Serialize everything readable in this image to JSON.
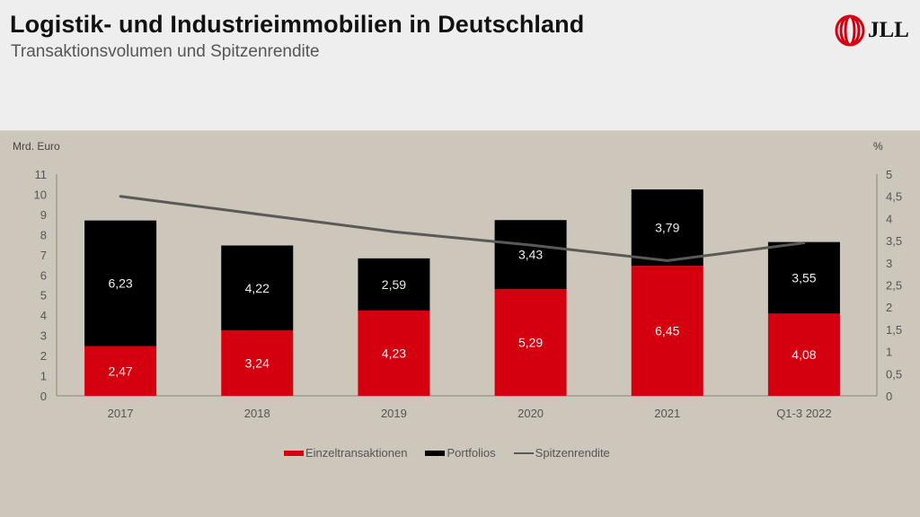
{
  "header": {
    "title": "Logistik- und Industrieimmobilien in Deutschland",
    "subtitle": "Transaktionsvolumen und Spitzenrendite",
    "logo_text": "JLL",
    "logo_icon": "jll-rings-logo-icon"
  },
  "colors": {
    "einzel": "#d5000f",
    "portfolio": "#000000",
    "line": "#595959",
    "background": "#ccc6bb",
    "header_bg": "#eeeeee"
  },
  "chart_data": {
    "type": "bar",
    "stacked": true,
    "title": "Transaktionsvolumen und Spitzenrendite",
    "categories": [
      "2017",
      "2018",
      "2019",
      "2020",
      "2021",
      "Q1-3 2022"
    ],
    "series": [
      {
        "name": "Einzeltransaktionen",
        "type": "bar",
        "axis": "left",
        "values": [
          2.47,
          3.24,
          4.23,
          5.29,
          6.45,
          4.08
        ],
        "labels": [
          "2,47",
          "3,24",
          "4,23",
          "5,29",
          "6,45",
          "4,08"
        ]
      },
      {
        "name": "Portfolios",
        "type": "bar",
        "axis": "left",
        "values": [
          6.23,
          4.22,
          2.59,
          3.43,
          3.79,
          3.55
        ],
        "labels": [
          "6,23",
          "4,22",
          "2,59",
          "3,43",
          "3,79",
          "3,55"
        ]
      },
      {
        "name": "Spitzenrendite",
        "type": "line",
        "axis": "right",
        "values": [
          4.5,
          4.1,
          3.7,
          3.4,
          3.05,
          3.45
        ]
      }
    ],
    "ylabel": "Mrd. Euro",
    "ylim": [
      0,
      11
    ],
    "yticks": [
      "0",
      "1",
      "2",
      "3",
      "4",
      "5",
      "6",
      "7",
      "8",
      "9",
      "10",
      "11"
    ],
    "y2label": "%",
    "y2lim": [
      0,
      5
    ],
    "y2ticks": [
      "0",
      "0,5",
      "1",
      "1,5",
      "2",
      "2,5",
      "3",
      "3,5",
      "4",
      "4,5",
      "5"
    ],
    "grid": false,
    "legend": "bottom-center",
    "legend_entries": [
      "Einzeltransaktionen",
      "Portfolios",
      "Spitzenrendite"
    ]
  }
}
